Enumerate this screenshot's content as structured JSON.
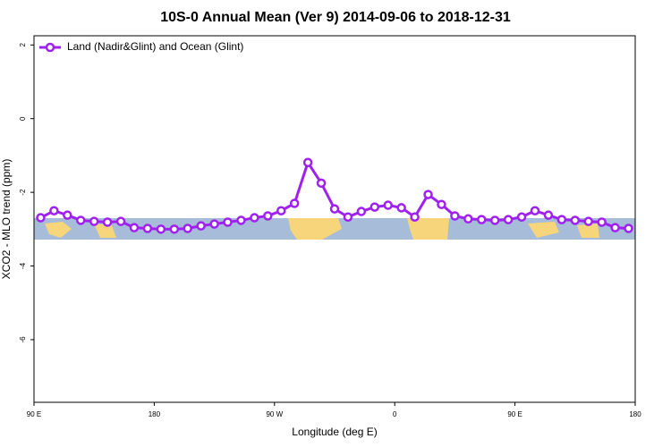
{
  "chart_data": {
    "type": "line",
    "title": "10S-0 Annual Mean (Ver 9)   2014-09-06 to 2018-12-31",
    "xlabel": "Longitude (deg E)",
    "ylabel": "XCO2 - MLO trend (ppm)",
    "x": [
      95,
      105,
      115,
      125,
      135,
      145,
      155,
      165,
      175,
      185,
      195,
      205,
      215,
      225,
      235,
      245,
      255,
      265,
      275,
      285,
      295,
      305,
      315,
      325,
      335,
      345,
      355,
      365,
      375,
      385,
      395,
      405,
      415,
      425,
      435,
      445,
      455,
      465,
      475,
      485,
      495,
      505,
      515,
      525,
      535
    ],
    "series": [
      {
        "name": "Land (Nadir&Glint) and Ocean (Glint)",
        "color": "#a020f0",
        "values": [
          -2.69,
          -2.5,
          -2.62,
          -2.76,
          -2.79,
          -2.81,
          -2.79,
          -2.96,
          -2.98,
          -3.0,
          -3.0,
          -2.98,
          -2.91,
          -2.86,
          -2.81,
          -2.76,
          -2.69,
          -2.64,
          -2.5,
          -2.3,
          -1.19,
          -1.75,
          -2.45,
          -2.67,
          -2.52,
          -2.4,
          -2.35,
          -2.42,
          -2.67,
          -2.06,
          -2.33,
          -2.64,
          -2.72,
          -2.74,
          -2.76,
          -2.74,
          -2.67,
          -2.5,
          -2.62,
          -2.74,
          -2.76,
          -2.79,
          -2.81,
          -2.96,
          -2.98
        ]
      }
    ],
    "xlim": [
      90,
      540
    ],
    "xticks": [
      {
        "value": 90,
        "label": "90 E"
      },
      180,
      {
        "value": 270,
        "label": "90 W"
      },
      {
        "value": 360,
        "label": "0"
      },
      {
        "value": 450,
        "label": "90 E"
      },
      {
        "value": 540,
        "label": "180"
      }
    ],
    "ylim": [
      -7.7,
      2.25
    ],
    "yticks": [
      -6,
      -4,
      -2,
      0,
      2
    ],
    "legend": "upper left"
  }
}
